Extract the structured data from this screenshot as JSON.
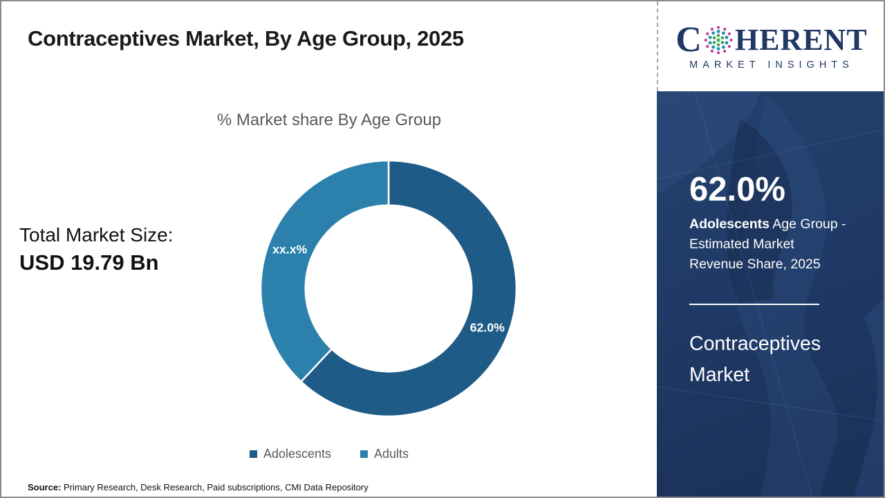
{
  "title": "Contraceptives Market, By Age Group, 2025",
  "logo": {
    "brand_first_letter": "C",
    "brand_rest": "HERENT",
    "subtitle": "MARKET INSIGHTS",
    "navy": "#1f3864",
    "dot_colors": {
      "inner_green": "#44a049",
      "mid_teal": "#1e8fb9",
      "outer_magenta": "#c52e8a"
    }
  },
  "total_market": {
    "label": "Total Market Size:",
    "value": "USD 19.79 Bn"
  },
  "chart_data": {
    "type": "pie",
    "donut": true,
    "title": "% Market share By Age Group",
    "categories": [
      "Adolescents",
      "Adults"
    ],
    "values": [
      62.0,
      38.0
    ],
    "value_labels": [
      "62.0%",
      "xx.x%"
    ],
    "colors": [
      "#1f5b87",
      "#2b81ab"
    ],
    "legend_position": "bottom",
    "legend_text_color": "#595959"
  },
  "sidebar": {
    "headline_value": "62.0%",
    "description_bold": "Adolescents",
    "description_rest": " Age Group - Estimated Market Revenue Share, 2025",
    "product": "Contraceptives Market",
    "background": "#1f3a66"
  },
  "source": {
    "label": "Source:",
    "text": " Primary Research, Desk Research, Paid subscriptions, CMI Data Repository"
  }
}
